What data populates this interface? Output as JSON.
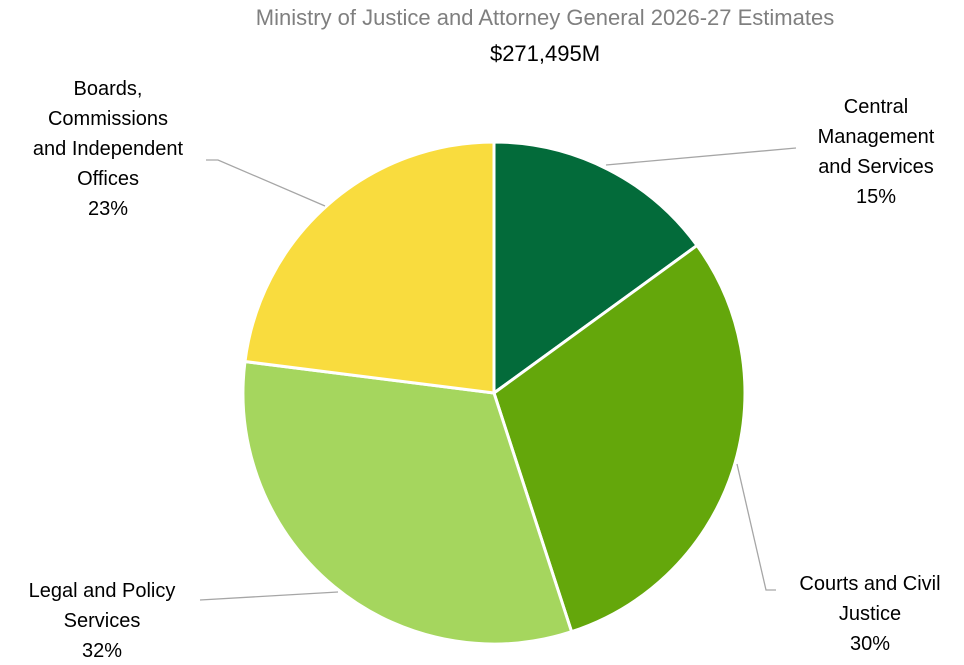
{
  "chart_data": {
    "type": "pie",
    "title": "Ministry of Justice and Attorney General 2026-27 Estimates",
    "subtitle": "$271,495M",
    "slices": [
      {
        "name": "Central Management and Services",
        "label_lines": [
          "Central",
          "Management",
          "and Services"
        ],
        "percent_label": "15%",
        "value": 15,
        "color": "#036b3a"
      },
      {
        "name": "Courts and Civil Justice",
        "label_lines": [
          "Courts and Civil",
          "Justice"
        ],
        "percent_label": "30%",
        "value": 30,
        "color": "#64a70b"
      },
      {
        "name": "Legal and Policy Services",
        "label_lines": [
          "Legal and Policy",
          "Services"
        ],
        "percent_label": "32%",
        "value": 32,
        "color": "#a5d65e"
      },
      {
        "name": "Boards, Commissions and Independent Offices",
        "label_lines": [
          "Boards,",
          "Commissions",
          "and Independent",
          "Offices"
        ],
        "percent_label": "23%",
        "value": 23,
        "color": "#f9dc3e"
      }
    ],
    "legend": "none",
    "labels": "outside-with-leader-lines"
  }
}
